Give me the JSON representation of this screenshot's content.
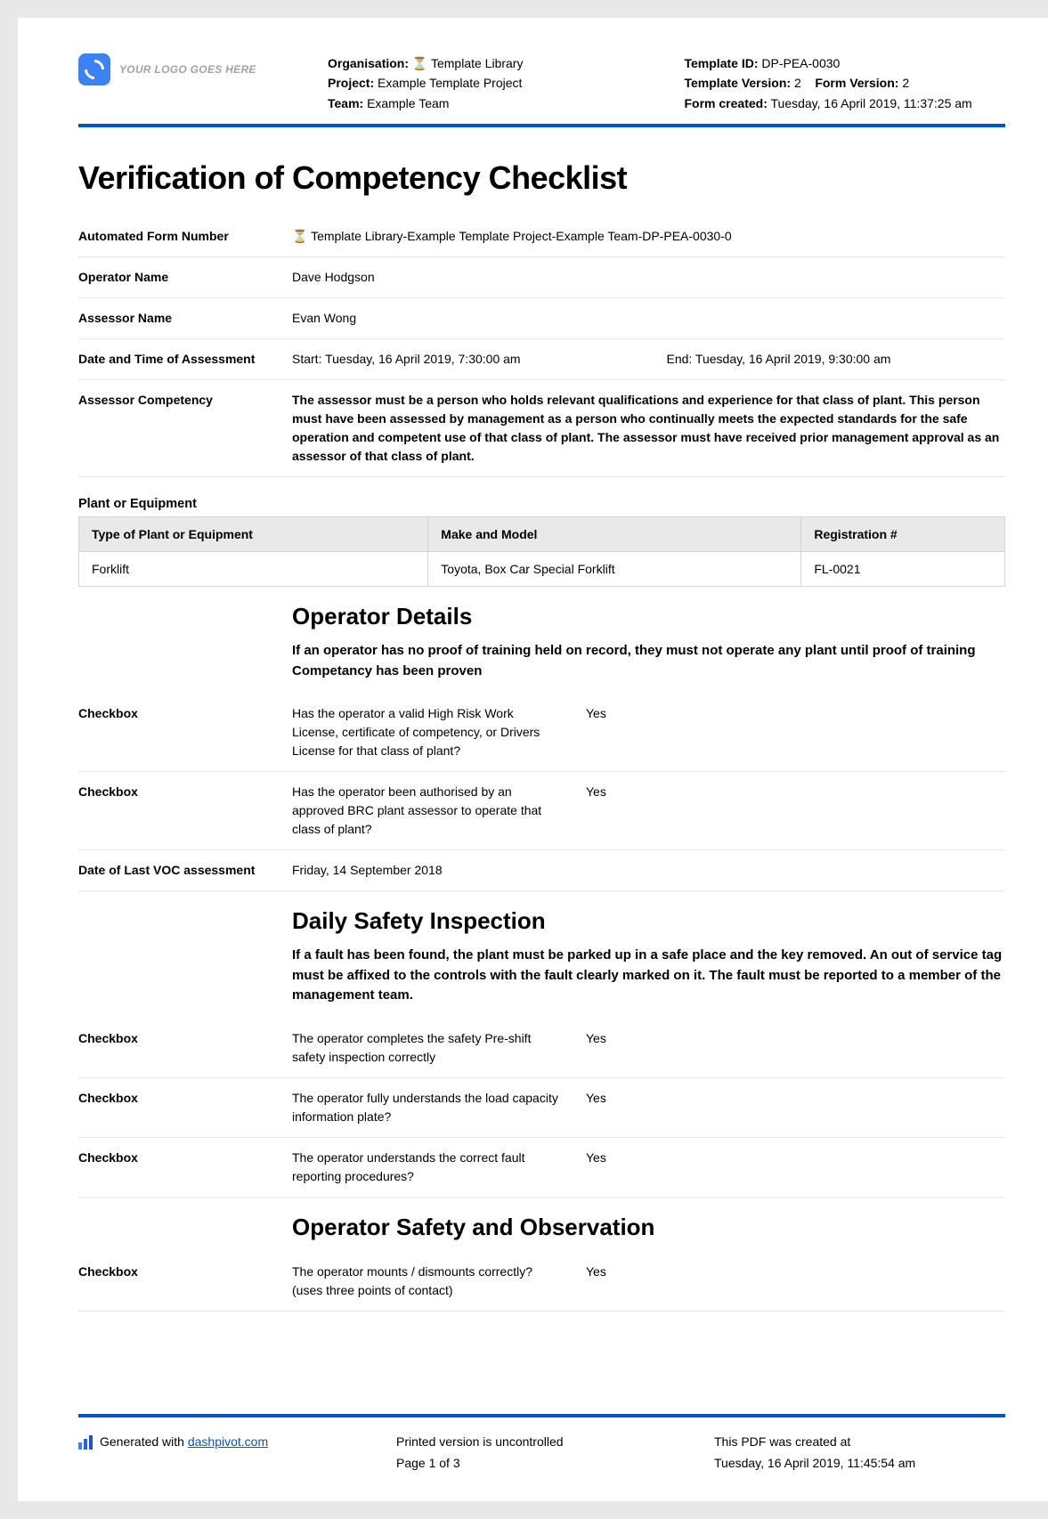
{
  "logo_placeholder": "YOUR LOGO GOES HERE",
  "header": {
    "left": {
      "organisation_label": "Organisation:",
      "organisation_value": "⏳ Template Library",
      "project_label": "Project:",
      "project_value": "Example Template Project",
      "team_label": "Team:",
      "team_value": "Example Team"
    },
    "right": {
      "template_id_label": "Template ID:",
      "template_id_value": "DP-PEA-0030",
      "template_version_label": "Template Version:",
      "template_version_value": "2",
      "form_version_label": "Form Version:",
      "form_version_value": "2",
      "form_created_label": "Form created:",
      "form_created_value": "Tuesday, 16 April 2019, 11:37:25 am"
    }
  },
  "title": "Verification of Competency Checklist",
  "fields": {
    "auto_number_label": "Automated Form Number",
    "auto_number_value": "⏳ Template Library-Example Template Project-Example Team-DP-PEA-0030-0",
    "operator_name_label": "Operator Name",
    "operator_name_value": "Dave Hodgson",
    "assessor_name_label": "Assessor Name",
    "assessor_name_value": "Evan Wong",
    "datetime_label": "Date and Time of Assessment",
    "datetime_start": "Start: Tuesday, 16 April 2019, 7:30:00 am",
    "datetime_end": "End: Tuesday, 16 April 2019, 9:30:00 am",
    "assessor_comp_label": "Assessor Competency",
    "assessor_comp_value": "The assessor must be a person who holds relevant qualifications and experience for that class of plant. This person must have been assessed by management as a person who continually meets the expected standards for the safe operation and competent use of that class of plant. The assessor must have received prior management approval as an assessor of that class of plant."
  },
  "plant_section_title": "Plant or Equipment",
  "plant_table": {
    "headers": [
      "Type of Plant or Equipment",
      "Make and Model",
      "Registration #"
    ],
    "row": [
      "Forklift",
      "Toyota, Box Car Special Forklift",
      "FL-0021"
    ]
  },
  "operator_details": {
    "title": "Operator Details",
    "note": "If an operator has no proof of training held on record, they must not operate any plant until proof of training Competancy has been proven",
    "rows": [
      {
        "label": "Checkbox",
        "q": "Has the operator a valid High Risk Work License, certificate of competency, or Drivers License for that class of plant?",
        "a": "Yes"
      },
      {
        "label": "Checkbox",
        "q": "Has the operator been authorised by an approved BRC plant assessor to operate that class of plant?",
        "a": "Yes"
      }
    ],
    "last_voc_label": "Date of Last VOC assessment",
    "last_voc_value": "Friday, 14 September 2018"
  },
  "daily_safety": {
    "title": "Daily Safety Inspection",
    "note": "If a fault has been found, the plant must be parked up in a safe place and the key removed. An out of service tag must be affixed to the controls with the fault clearly marked on it. The fault must be reported to a member of the management team.",
    "rows": [
      {
        "label": "Checkbox",
        "q": "The operator completes the safety Pre-shift safety inspection correctly",
        "a": "Yes"
      },
      {
        "label": "Checkbox",
        "q": "The operator fully understands the load capacity information plate?",
        "a": "Yes"
      },
      {
        "label": "Checkbox",
        "q": "The operator understands the correct fault reporting procedures?",
        "a": "Yes"
      }
    ]
  },
  "operator_safety": {
    "title": "Operator Safety and Observation",
    "rows": [
      {
        "label": "Checkbox",
        "q": "The operator mounts / dismounts correctly? (uses three points of contact)",
        "a": "Yes"
      }
    ]
  },
  "footer": {
    "generated_with": "Generated with ",
    "dashpivot_link": "dashpivot.com",
    "uncontrolled": "Printed version is uncontrolled",
    "page_info": "Page 1 of 3",
    "created_at_label": "This PDF was created at",
    "created_at_value": "Tuesday, 16 April 2019, 11:45:54 am"
  },
  "colors": {
    "accent": "#0055cc",
    "logo_bg": "#3b82f6",
    "grey_text": "#9ca3af",
    "border": "#e5e7eb",
    "table_header_bg": "#e9e9e9",
    "table_border": "#d1d5db"
  }
}
